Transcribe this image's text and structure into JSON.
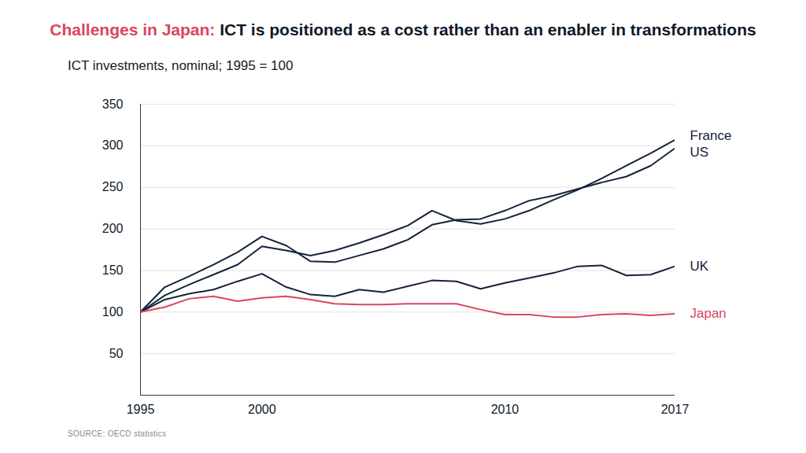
{
  "chart_data": {
    "type": "line",
    "title": "Challenges in Japan: ICT is positioned as a cost rather than an enabler in transformations",
    "subtitle": "ICT investments, nominal; 1995 = 100",
    "caption": "SOURCE: OECD statistics",
    "x": [
      1995,
      1996,
      1997,
      1998,
      1999,
      2000,
      2001,
      2002,
      2003,
      2004,
      2005,
      2006,
      2007,
      2008,
      2009,
      2010,
      2011,
      2012,
      2013,
      2014,
      2015,
      2016,
      2017
    ],
    "xlim": [
      1995,
      2017
    ],
    "xticks": [
      1995,
      2000,
      2010,
      2017
    ],
    "ylim": [
      0,
      350
    ],
    "yticks": [
      50,
      100,
      150,
      200,
      250,
      300,
      350
    ],
    "grid": true,
    "series": [
      {
        "name": "France",
        "color": "#14233a",
        "values": [
          100,
          120,
          133,
          145,
          157,
          179,
          174,
          168,
          174,
          183,
          193,
          204,
          222,
          210,
          206,
          212,
          222,
          235,
          247,
          261,
          276,
          291,
          307
        ]
      },
      {
        "name": "US",
        "color": "#14233a",
        "values": [
          100,
          130,
          143,
          157,
          172,
          191,
          180,
          161,
          160,
          168,
          176,
          187,
          205,
          211,
          212,
          222,
          234,
          240,
          248,
          256,
          263,
          276,
          297
        ]
      },
      {
        "name": "UK",
        "color": "#14233a",
        "values": [
          100,
          115,
          122,
          127,
          137,
          146,
          130,
          121,
          119,
          127,
          124,
          131,
          138,
          137,
          128,
          135,
          141,
          147,
          155,
          156,
          144,
          145,
          155
        ]
      },
      {
        "name": "Japan",
        "color": "#d9465f",
        "values": [
          100,
          106,
          116,
          119,
          113,
          117,
          119,
          115,
          110,
          109,
          109,
          110,
          110,
          110,
          103,
          97,
          97,
          94,
          94,
          97,
          98,
          96,
          98
        ]
      }
    ]
  }
}
